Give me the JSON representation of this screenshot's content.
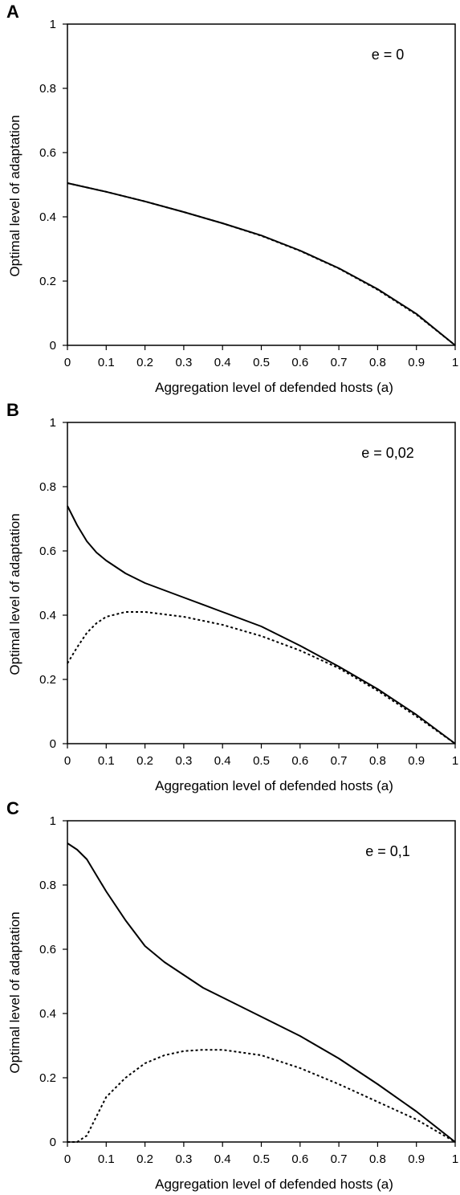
{
  "chart_data": [
    {
      "panel_label": "A",
      "type": "line",
      "annotation": "e = 0",
      "xlabel": "Aggregation level of defended hosts (a)",
      "ylabel": "Optimal level of adaptation",
      "xlim": [
        0,
        1
      ],
      "ylim": [
        0,
        1
      ],
      "xticks": [
        "0",
        "0.1",
        "0.2",
        "0.3",
        "0.4",
        "0.5",
        "0.6",
        "0.7",
        "0.8",
        "0.9",
        "1"
      ],
      "yticks": [
        "0",
        "0.2",
        "0.4",
        "0.6",
        "0.8",
        "1"
      ],
      "x": [
        0,
        0.1,
        0.2,
        0.3,
        0.4,
        0.5,
        0.6,
        0.7,
        0.8,
        0.9,
        1.0
      ],
      "series": [
        {
          "style": "solid",
          "values": [
            0.505,
            0.478,
            0.448,
            0.415,
            0.38,
            0.342,
            0.295,
            0.24,
            0.175,
            0.098,
            0.0
          ]
        },
        {
          "style": "dotted",
          "values": [
            0.505,
            0.478,
            0.448,
            0.415,
            0.38,
            0.341,
            0.294,
            0.239,
            0.173,
            0.096,
            0.0
          ]
        }
      ]
    },
    {
      "panel_label": "B",
      "type": "line",
      "annotation": "e = 0,02",
      "xlabel": "Aggregation level of defended hosts (a)",
      "ylabel": "Optimal level of adaptation",
      "xlim": [
        0,
        1
      ],
      "ylim": [
        0,
        1
      ],
      "xticks": [
        "0",
        "0.1",
        "0.2",
        "0.3",
        "0.4",
        "0.5",
        "0.6",
        "0.7",
        "0.8",
        "0.9",
        "1"
      ],
      "yticks": [
        "0",
        "0.2",
        "0.4",
        "0.6",
        "0.8",
        "1"
      ],
      "x": [
        0,
        0.025,
        0.05,
        0.075,
        0.1,
        0.15,
        0.2,
        0.3,
        0.4,
        0.5,
        0.6,
        0.7,
        0.8,
        0.9,
        1.0
      ],
      "series": [
        {
          "style": "solid",
          "values": [
            0.74,
            0.68,
            0.63,
            0.595,
            0.57,
            0.53,
            0.5,
            0.455,
            0.41,
            0.365,
            0.305,
            0.24,
            0.17,
            0.09,
            0.0
          ]
        },
        {
          "style": "dotted",
          "values": [
            0.25,
            0.3,
            0.345,
            0.375,
            0.395,
            0.41,
            0.41,
            0.395,
            0.37,
            0.335,
            0.29,
            0.235,
            0.165,
            0.085,
            0.0
          ]
        }
      ]
    },
    {
      "panel_label": "C",
      "type": "line",
      "annotation": "e = 0,1",
      "xlabel": "Aggregation level of defended hosts (a)",
      "ylabel": "Optimal level of adaptation",
      "xlim": [
        0,
        1
      ],
      "ylim": [
        0,
        1
      ],
      "xticks": [
        "0",
        "0.1",
        "0.2",
        "0.3",
        "0.4",
        "0.5",
        "0.6",
        "0.7",
        "0.8",
        "0.9",
        "1"
      ],
      "yticks": [
        "0",
        "0.2",
        "0.4",
        "0.6",
        "0.8",
        "1"
      ],
      "x": [
        0,
        0.025,
        0.05,
        0.075,
        0.1,
        0.15,
        0.2,
        0.25,
        0.3,
        0.35,
        0.4,
        0.5,
        0.6,
        0.7,
        0.8,
        0.9,
        1.0
      ],
      "series": [
        {
          "style": "solid",
          "values": [
            0.93,
            0.91,
            0.88,
            0.83,
            0.78,
            0.69,
            0.61,
            0.56,
            0.52,
            0.48,
            0.45,
            0.39,
            0.33,
            0.26,
            0.18,
            0.095,
            0.0
          ]
        },
        {
          "style": "dotted",
          "values": [
            0.0,
            0.0,
            0.02,
            0.08,
            0.14,
            0.2,
            0.245,
            0.27,
            0.283,
            0.287,
            0.287,
            0.27,
            0.23,
            0.18,
            0.125,
            0.07,
            0.0
          ]
        }
      ]
    }
  ]
}
